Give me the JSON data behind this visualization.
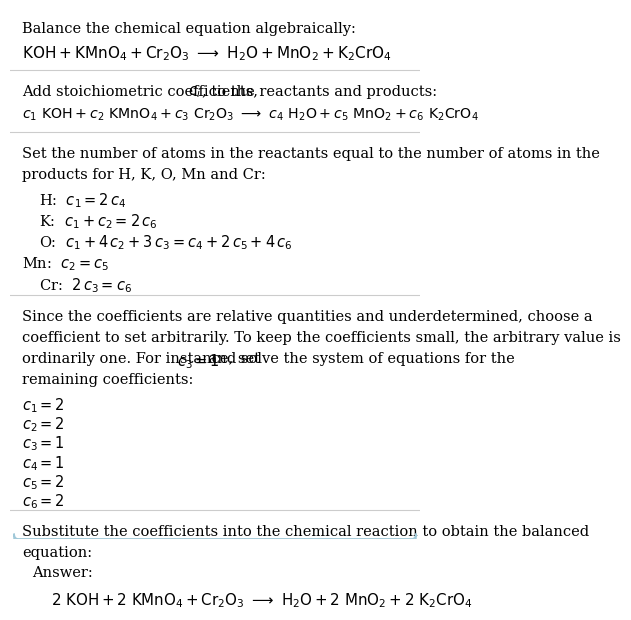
{
  "bg_color": "#ffffff",
  "text_color": "#000000",
  "answer_box_color": "#e8f4f8",
  "answer_box_edge": "#a0c8d8",
  "fs": 10.5,
  "lm": 0.03,
  "indent": 0.07,
  "title1": "Balance the chemical equation algebraically:",
  "eq1": "$\\mathrm{KOH + KMnO_4 + Cr_2O_3 \\ \\longrightarrow \\ H_2O + MnO_2 + K_2CrO_4}$",
  "title2a": "Add stoichiometric coefficients, ",
  "title2b": "$c_i$",
  "title2c": ", to the reactants and products:",
  "eq2": "$c_1\\ \\mathrm{KOH} + c_2\\ \\mathrm{KMnO_4} + c_3\\ \\mathrm{Cr_2O_3} \\ \\longrightarrow \\ c_4\\ \\mathrm{H_2O} + c_5\\ \\mathrm{MnO_2} + c_6\\ \\mathrm{K_2CrO_4}$",
  "title3a": "Set the number of atoms in the reactants equal to the number of atoms in the",
  "title3b": "products for H, K, O, Mn and Cr:",
  "atom_H": "H:  $c_1 = 2\\,c_4$",
  "atom_K": "K:  $c_1 + c_2 = 2\\,c_6$",
  "atom_O": "O:  $c_1 + 4\\,c_2 + 3\\,c_3 = c_4 + 2\\,c_5 + 4\\,c_6$",
  "atom_Mn": "Mn:  $c_2 = c_5$",
  "atom_Cr": "Cr:  $2\\,c_3 = c_6$",
  "title4a": "Since the coefficients are relative quantities and underdetermined, choose a",
  "title4b": "coefficient to set arbitrarily. To keep the coefficients small, the arbitrary value is",
  "title4c_pre": "ordinarily one. For instance, set ",
  "title4c_math": "$c_3 = 1$",
  "title4c_post": " and solve the system of equations for the",
  "title4d": "remaining coefficients:",
  "coeff1": "$c_1 = 2$",
  "coeff2": "$c_2 = 2$",
  "coeff3": "$c_3 = 1$",
  "coeff4": "$c_4 = 1$",
  "coeff5": "$c_5 = 2$",
  "coeff6": "$c_6 = 2$",
  "title5a": "Substitute the coefficients into the chemical reaction to obtain the balanced",
  "title5b": "equation:",
  "answer_label": "Answer:",
  "eq_balanced": "$\\mathrm{2\\ KOH + 2\\ KMnO_4 + Cr_2O_3 \\ \\longrightarrow \\ H_2O + 2\\ MnO_2 + 2\\ K_2CrO_4}$",
  "sep_color": "#cccccc",
  "sep_linewidth": 0.8
}
